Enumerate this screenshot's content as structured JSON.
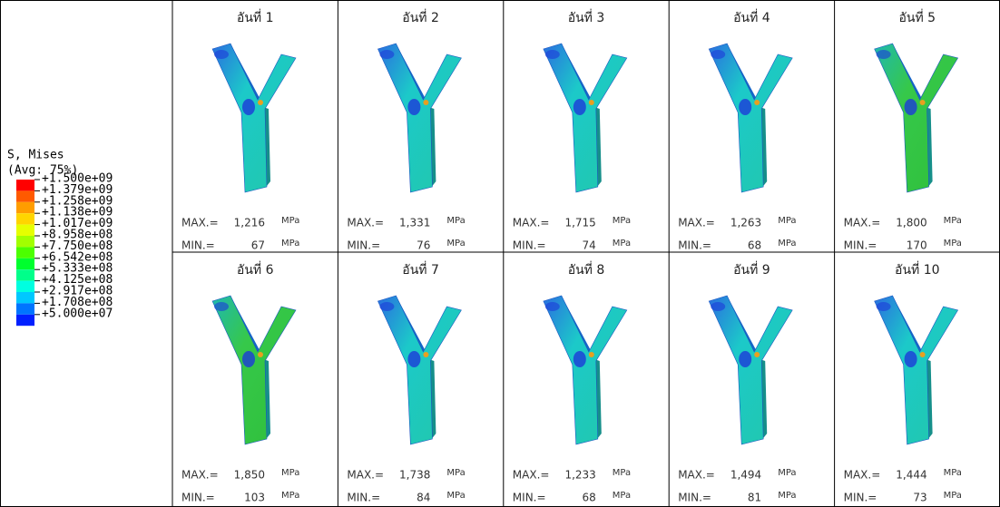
{
  "legend": {
    "title": "S, Mises",
    "subtitle": "(Avg: 75%)",
    "levels": [
      "+1.500e+09",
      "+1.379e+09",
      "+1.258e+09",
      "+1.138e+09",
      "+1.017e+09",
      "+8.958e+08",
      "+7.750e+08",
      "+6.542e+08",
      "+5.333e+08",
      "+4.125e+08",
      "+2.917e+08",
      "+1.708e+08",
      "+5.000e+07"
    ],
    "colors": [
      "#ff0000",
      "#ff5a00",
      "#ff9d00",
      "#ffd500",
      "#e6ff00",
      "#a2ff00",
      "#4cff00",
      "#00ff2e",
      "#00ff8a",
      "#00ffe0",
      "#00c8ff",
      "#0075ff",
      "#0020ff"
    ]
  },
  "max_label": "MAX.=",
  "min_label": "MIN.=",
  "unit": "MPa",
  "cells": [
    {
      "title": "อันที่ 1",
      "max": "1,216",
      "min": "67"
    },
    {
      "title": "อันที่ 2",
      "max": "1,331",
      "min": "76"
    },
    {
      "title": "อันที่ 3",
      "max": "1,715",
      "min": "74"
    },
    {
      "title": "อันที่ 4",
      "max": "1,263",
      "min": "68"
    },
    {
      "title": "อันที่ 5",
      "max": "1,800",
      "min": "170"
    },
    {
      "title": "อันที่ 6",
      "max": "1,850",
      "min": "103"
    },
    {
      "title": "อันที่ 7",
      "max": "1,738",
      "min": "84"
    },
    {
      "title": "อันที่ 8",
      "max": "1,233",
      "min": "68"
    },
    {
      "title": "อันที่ 9",
      "max": "1,494",
      "min": "81"
    },
    {
      "title": "อันที่ 10",
      "max": "1,444",
      "min": "73"
    }
  ]
}
